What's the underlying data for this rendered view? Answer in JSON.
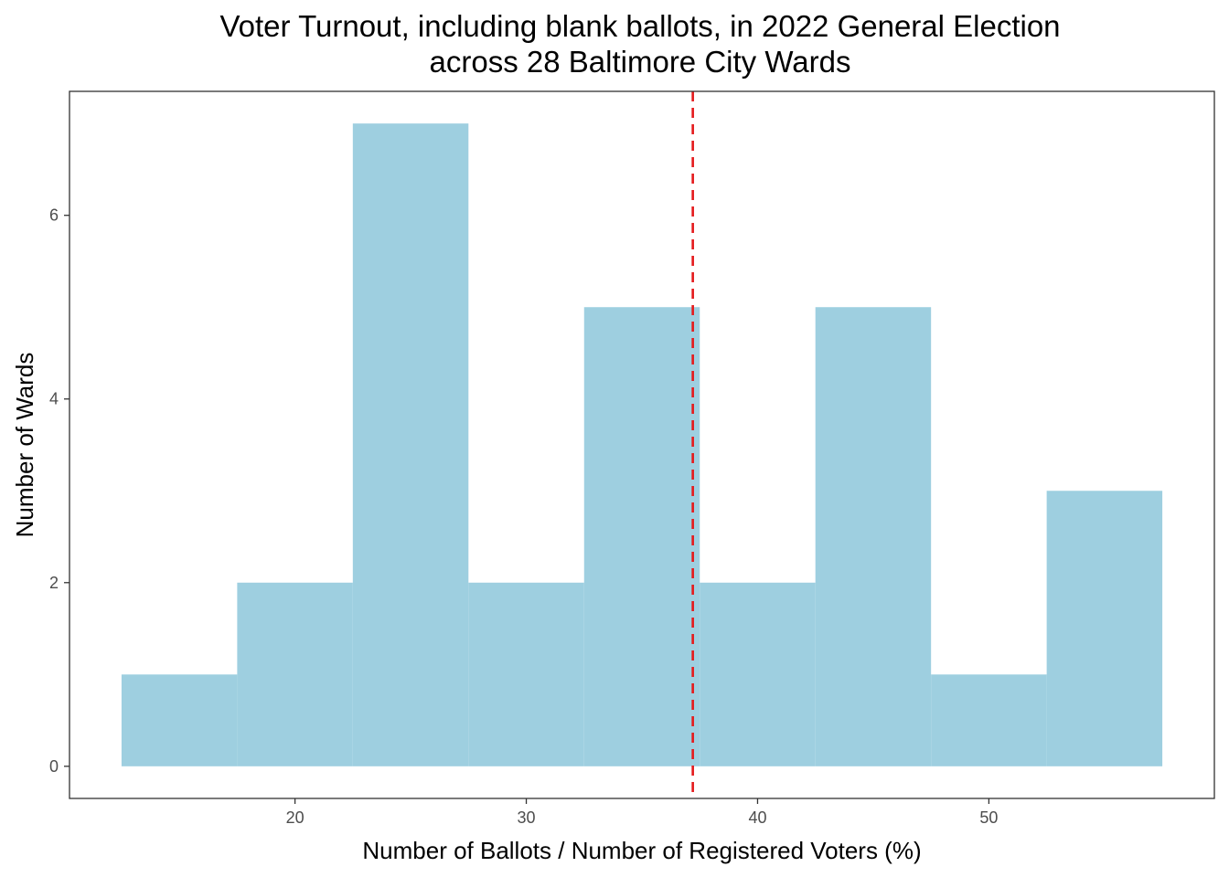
{
  "chart_data": {
    "type": "bar",
    "subtype": "histogram",
    "title_lines": [
      "Voter Turnout, including blank ballots, in 2022 General Election",
      "across 28 Baltimore City Wards"
    ],
    "xlabel": "Number of Ballots / Number of Registered Voters (%)",
    "ylabel": "Number of Wards",
    "bins": [
      {
        "x0": 12.5,
        "x1": 17.5,
        "count": 1
      },
      {
        "x0": 17.5,
        "x1": 22.5,
        "count": 2
      },
      {
        "x0": 22.5,
        "x1": 27.5,
        "count": 7
      },
      {
        "x0": 27.5,
        "x1": 32.5,
        "count": 2
      },
      {
        "x0": 32.5,
        "x1": 37.5,
        "count": 5
      },
      {
        "x0": 37.5,
        "x1": 42.5,
        "count": 2
      },
      {
        "x0": 42.5,
        "x1": 47.5,
        "count": 5
      },
      {
        "x0": 47.5,
        "x1": 52.5,
        "count": 1
      },
      {
        "x0": 52.5,
        "x1": 57.5,
        "count": 3
      }
    ],
    "reference_line": {
      "x": 37.2,
      "style": "dashed",
      "color": "#e41a1c"
    },
    "xlim": [
      10.25,
      59.75
    ],
    "ylim": [
      -0.35,
      7.35
    ],
    "x_ticks": [
      20,
      30,
      40,
      50
    ],
    "y_ticks": [
      0,
      2,
      4,
      6
    ],
    "bar_color": "#9ecfe0",
    "grid": false,
    "legend": "none"
  }
}
